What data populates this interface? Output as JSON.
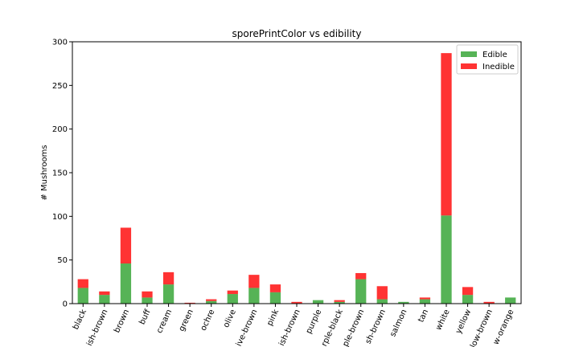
{
  "chart_data": {
    "type": "bar",
    "stacked": true,
    "title": "sporePrintColor vs edibility",
    "xlabel": "",
    "ylabel": "# Mushrooms",
    "ylim": [
      0,
      300
    ],
    "yticks": [
      0,
      50,
      100,
      150,
      200,
      250,
      300
    ],
    "grid": false,
    "legend_position": "top-right",
    "categories": [
      "black",
      "brownish-brown",
      "brown",
      "buff",
      "cream",
      "green",
      "ochre",
      "olive",
      "olive-brown",
      "pink",
      "pinkish-brown",
      "purple",
      "purple-black",
      "purple-brown",
      "reddish-brown",
      "salmon",
      "tan",
      "white",
      "yellow",
      "yellow-brown",
      "yellow-orange"
    ],
    "category_labels": [
      "black",
      "ish-brown",
      "brown",
      "buff",
      "cream",
      "green",
      "ochre",
      "olive",
      "ive-brown",
      "pink",
      "ish-brown",
      "purple",
      "rple-black",
      "ple-brown",
      "sh-brown",
      "salmon",
      "tan",
      "white",
      "yellow",
      "low-brown",
      "w-orange"
    ],
    "series": [
      {
        "name": "Edible",
        "color": "#2ca02c",
        "values": [
          18,
          10,
          46,
          7,
          22,
          0,
          3,
          11,
          18,
          13,
          0,
          4,
          2,
          28,
          5,
          2,
          5,
          101,
          10,
          0,
          7
        ]
      },
      {
        "name": "Inedible",
        "color": "#ff0000",
        "values": [
          10,
          4,
          41,
          7,
          14,
          1,
          2,
          4,
          15,
          9,
          2,
          0,
          2,
          7,
          15,
          0,
          2,
          186,
          9,
          2,
          0
        ]
      }
    ]
  }
}
